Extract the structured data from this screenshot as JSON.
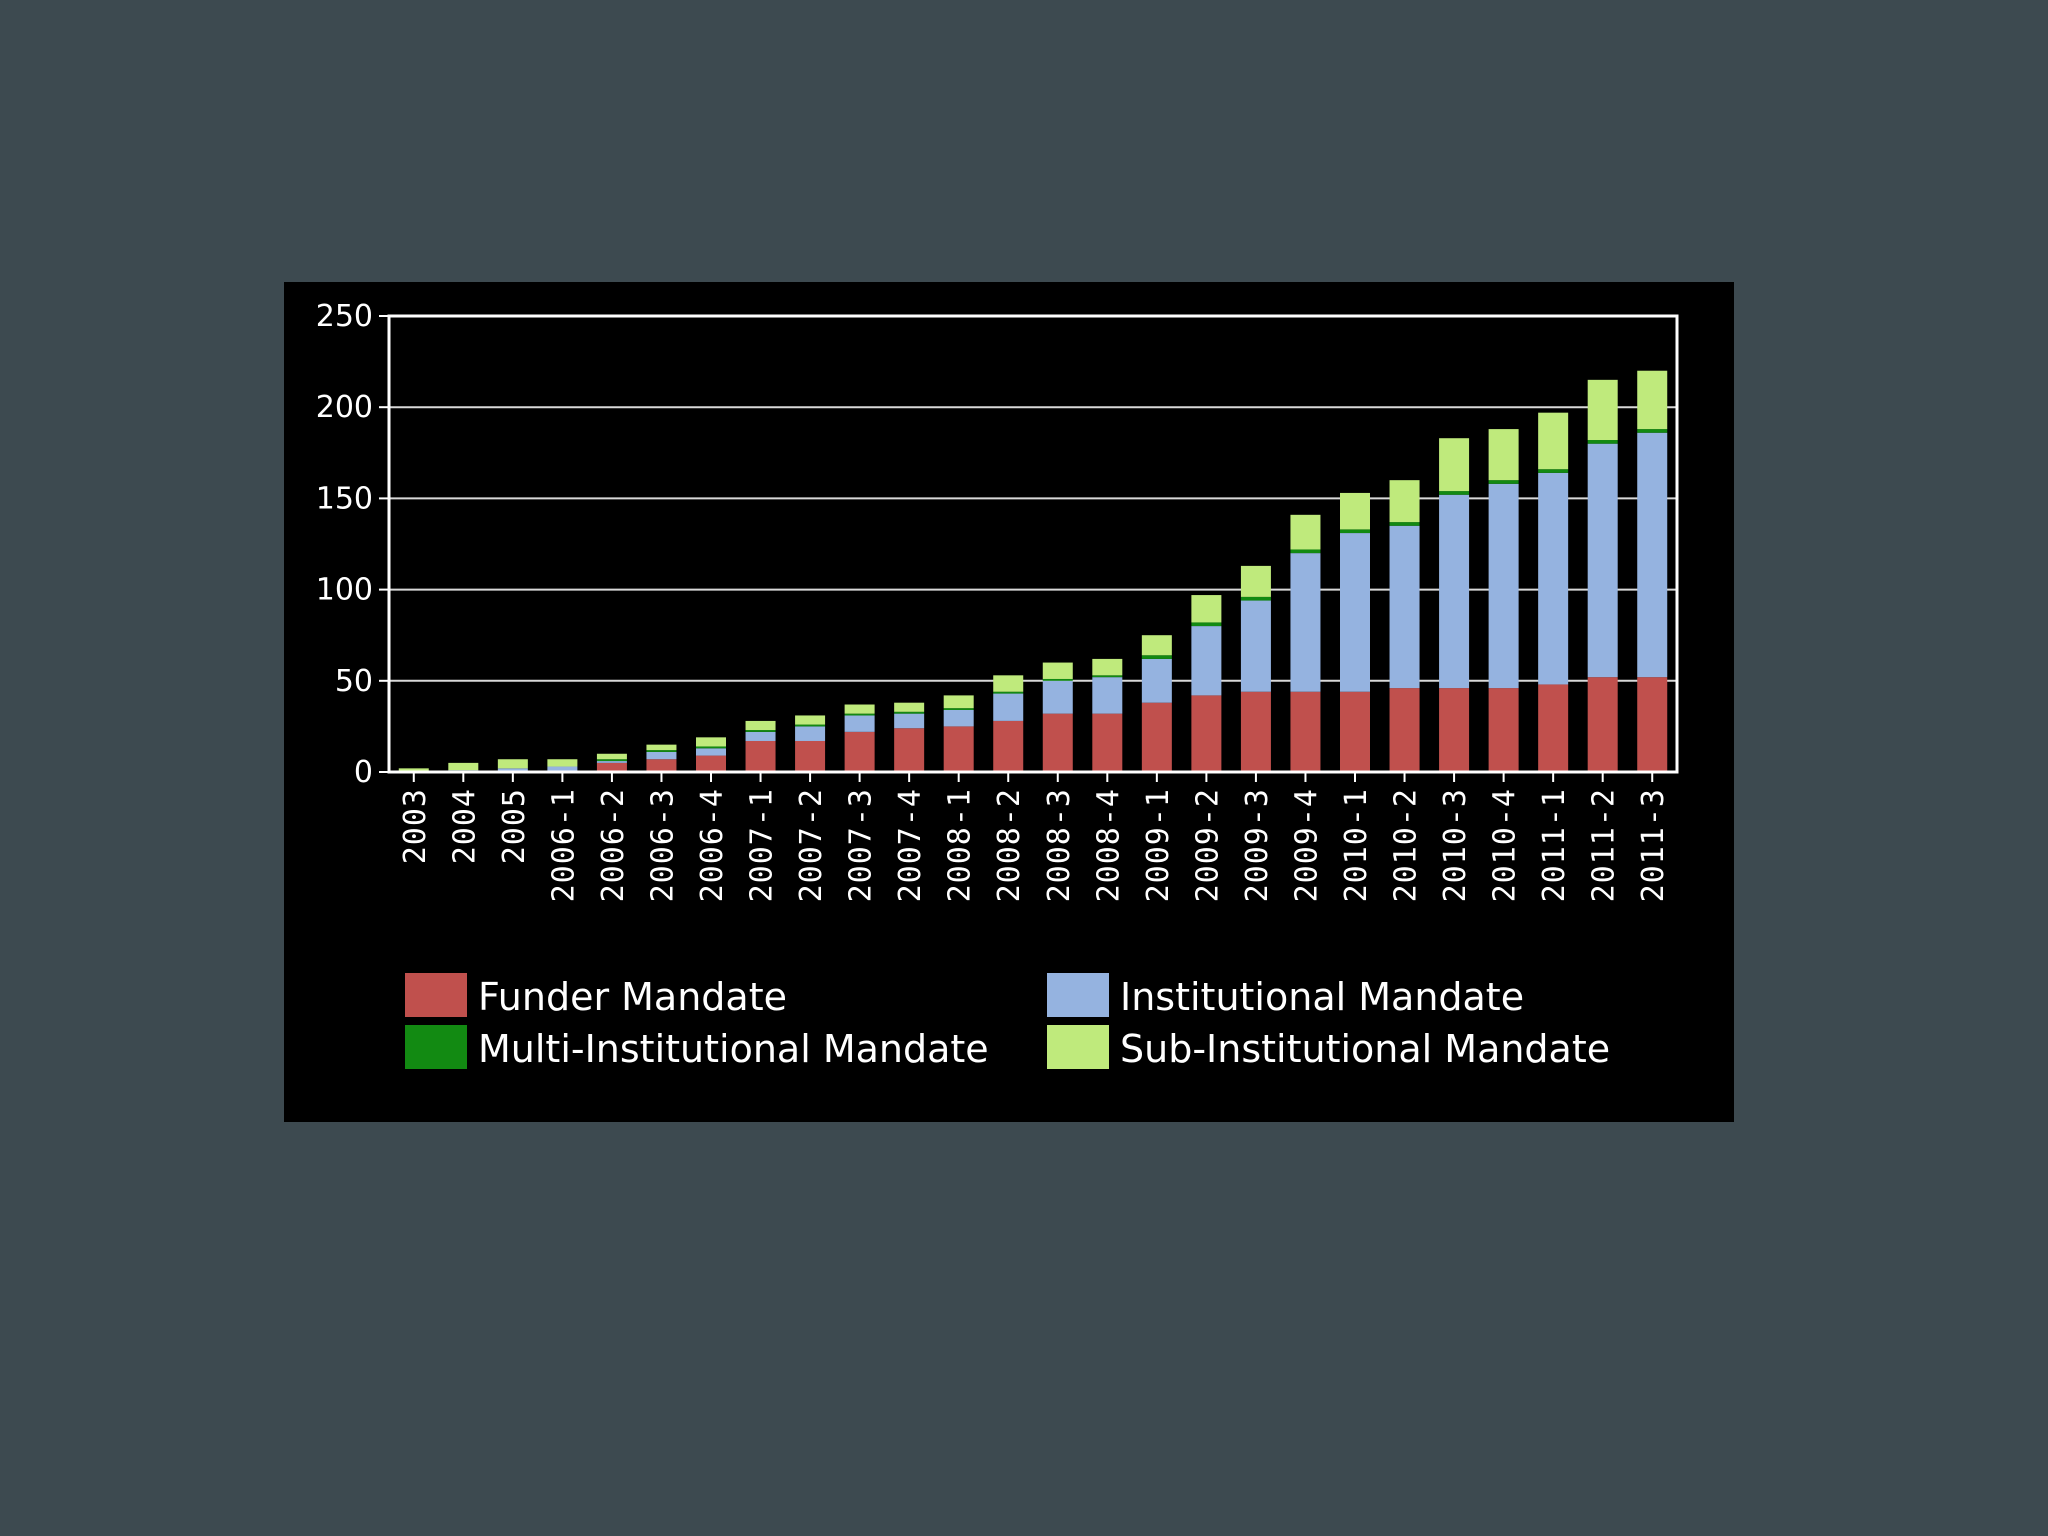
{
  "chart_data": {
    "type": "bar",
    "stacked": true,
    "title": "",
    "xlabel": "",
    "ylabel": "",
    "ylim": [
      0,
      250
    ],
    "yticks": [
      0,
      50,
      100,
      150,
      200,
      250
    ],
    "grid": "horizontal",
    "legend_position": "bottom",
    "background": "#000000",
    "categories": [
      "2003",
      "2004",
      "2005",
      "2006-1",
      "2006-2",
      "2006-3",
      "2006-4",
      "2007-1",
      "2007-2",
      "2007-3",
      "2007-4",
      "2008-1",
      "2008-2",
      "2008-3",
      "2008-4",
      "2009-1",
      "2009-2",
      "2009-3",
      "2009-4",
      "2010-1",
      "2010-2",
      "2010-3",
      "2010-4",
      "2011-1",
      "2011-2",
      "2011-3"
    ],
    "series": [
      {
        "name": "Funder Mandate",
        "color": "#c0504d",
        "values": [
          0,
          0,
          0,
          0,
          5,
          7,
          9,
          17,
          17,
          22,
          24,
          25,
          28,
          32,
          32,
          38,
          42,
          44,
          44,
          44,
          46,
          46,
          46,
          48,
          52,
          52
        ]
      },
      {
        "name": "Institutional Mandate",
        "color": "#95b3e0",
        "values": [
          0,
          1,
          2,
          3,
          1,
          4,
          4,
          5,
          8,
          9,
          8,
          9,
          15,
          18,
          20,
          24,
          38,
          50,
          76,
          87,
          89,
          106,
          112,
          116,
          128,
          134
        ]
      },
      {
        "name": "Multi-Institutional Mandate",
        "color": "#128a12",
        "values": [
          0,
          0,
          0,
          0,
          1,
          1,
          1,
          1,
          1,
          1,
          1,
          1,
          1,
          1,
          1,
          2,
          2,
          2,
          2,
          2,
          2,
          2,
          2,
          2,
          2,
          2
        ]
      },
      {
        "name": "Sub-Institutional Mandate",
        "color": "#bfea7c",
        "values": [
          2,
          4,
          5,
          4,
          3,
          3,
          5,
          5,
          5,
          5,
          5,
          7,
          9,
          9,
          9,
          11,
          15,
          17,
          19,
          20,
          23,
          29,
          28,
          31,
          33,
          32
        ]
      }
    ]
  }
}
